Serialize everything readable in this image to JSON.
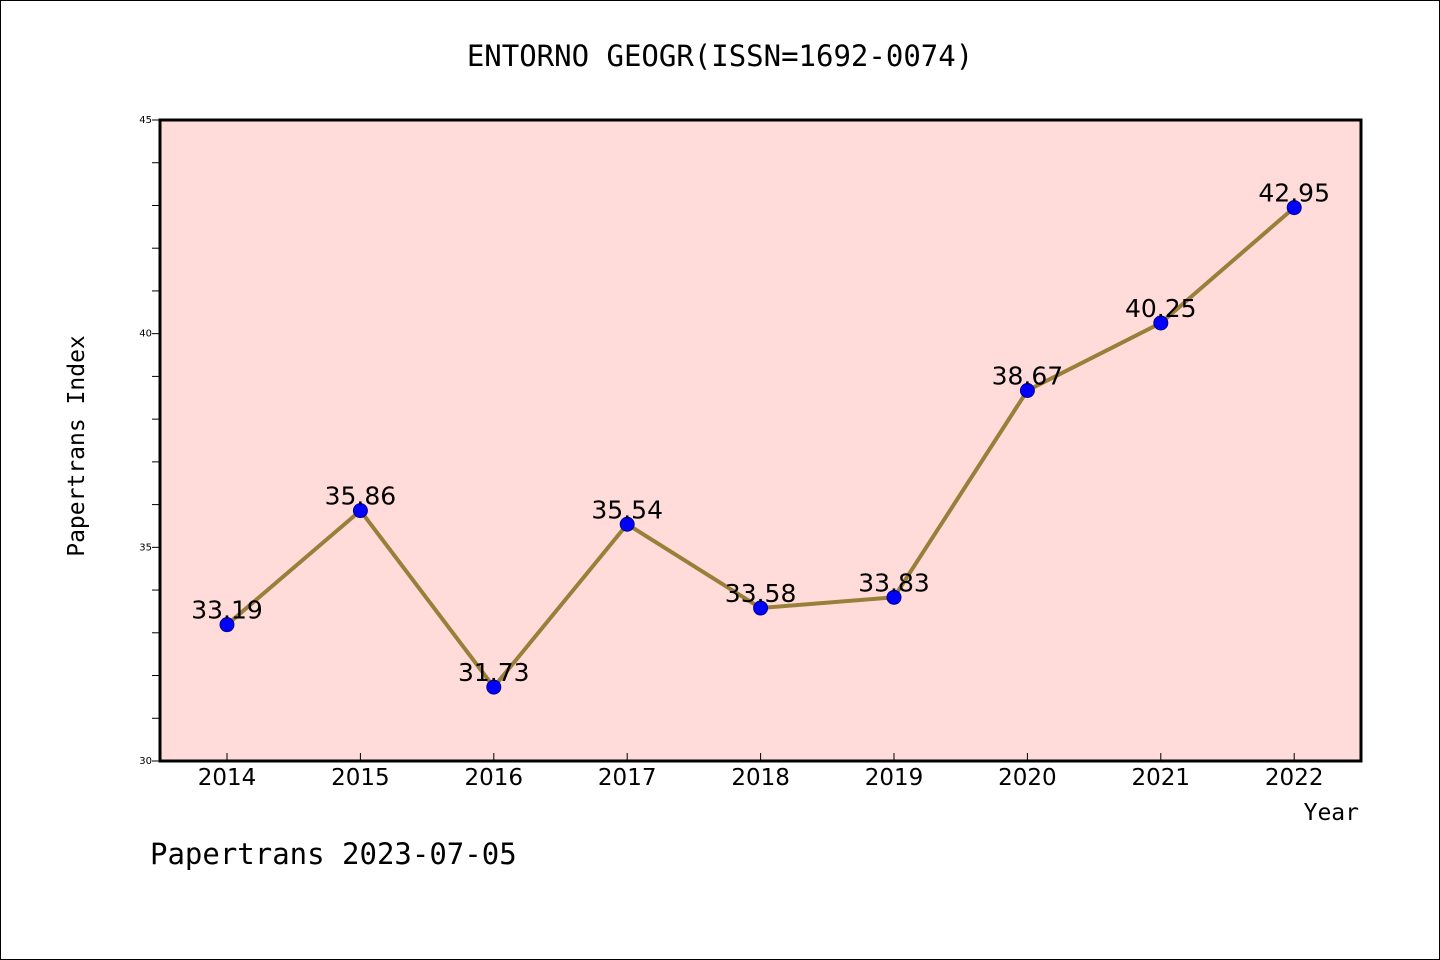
{
  "chart_data": {
    "type": "line",
    "title": "ENTORNO GEOGR(ISSN=1692-0074)",
    "xlabel": "Year",
    "ylabel": "Papertrans Index",
    "x": [
      "2014",
      "2015",
      "2016",
      "2017",
      "2018",
      "2019",
      "2020",
      "2021",
      "2022"
    ],
    "values": [
      33.19,
      35.86,
      31.73,
      35.54,
      33.58,
      33.83,
      38.67,
      40.25,
      42.95
    ],
    "data_labels": [
      "33.19",
      "35.86",
      "31.73",
      "35.54",
      "33.58",
      "33.83",
      "38.67",
      "40.25",
      "42.95"
    ],
    "ylim": [
      30,
      45
    ],
    "y_major_ticks": [
      "30",
      "35",
      "40",
      "45"
    ],
    "y_minor_step": 1,
    "grid": false,
    "legend": "none",
    "colors": {
      "plot_background": "#ffdcd9",
      "line": "#9a7f3a",
      "marker": "#0000ff"
    }
  },
  "footer": "Papertrans 2023-07-05"
}
